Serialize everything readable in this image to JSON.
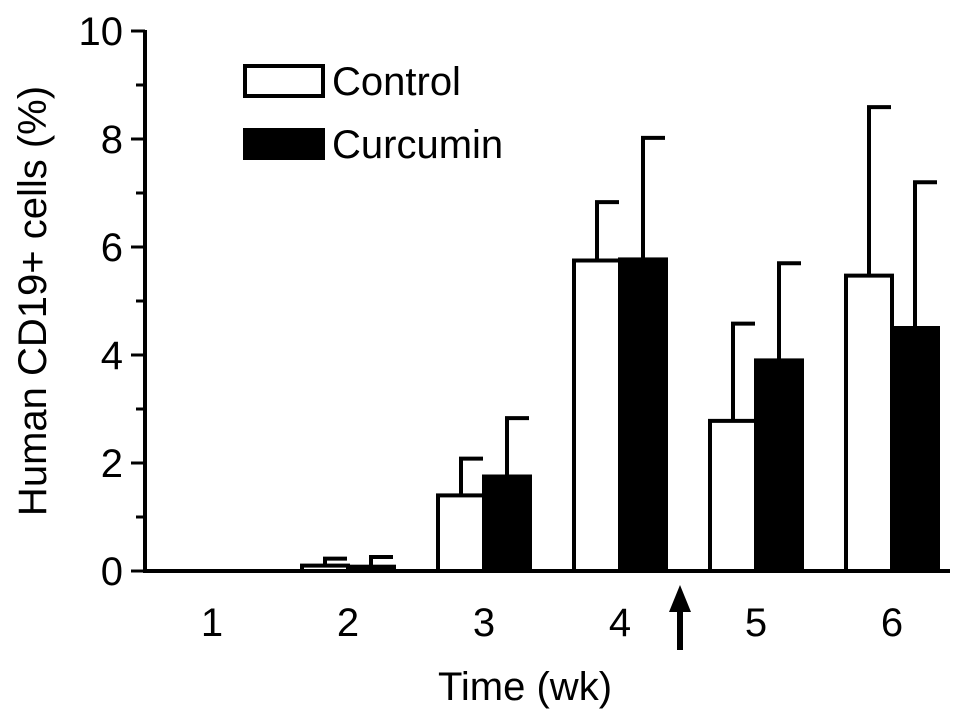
{
  "chart_data": {
    "type": "bar",
    "xlabel": "Time (wk)",
    "ylabel": "Human CD19+ cells (%)",
    "ylim": [
      0,
      10
    ],
    "yticks": [
      "0",
      "2",
      "4",
      "6",
      "8",
      "10"
    ],
    "categories": [
      "1",
      "2",
      "3",
      "4",
      "5",
      "6"
    ],
    "series": [
      {
        "name": "Control",
        "fill": "#ffffff",
        "values": [
          0,
          0.1,
          1.4,
          5.75,
          2.78,
          5.47
        ],
        "errors": [
          0,
          0.13,
          0.68,
          1.08,
          1.8,
          3.12
        ]
      },
      {
        "name": "Curcumin",
        "fill": "#000000",
        "values": [
          0,
          0.08,
          1.75,
          5.77,
          3.9,
          4.5
        ],
        "errors": [
          0,
          0.18,
          1.08,
          2.25,
          1.8,
          2.7
        ]
      }
    ],
    "legend_position": "top-left",
    "annotation": {
      "type": "up-arrow",
      "between": [
        "4",
        "5"
      ]
    },
    "grid": false
  }
}
